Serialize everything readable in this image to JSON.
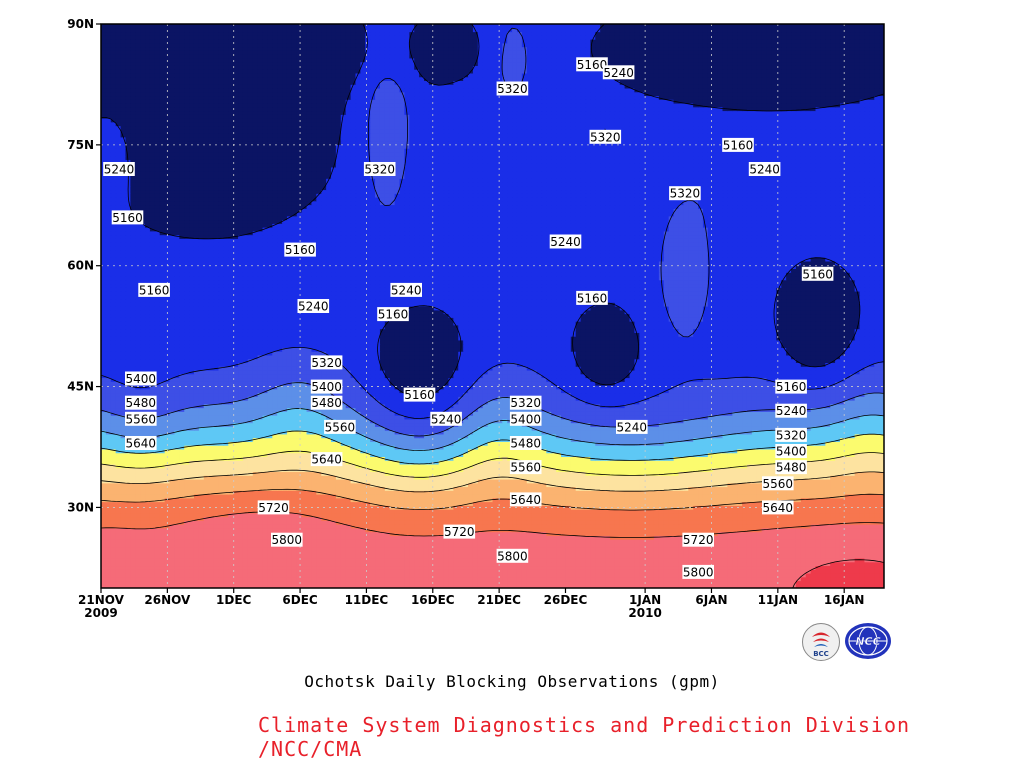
{
  "chart_data": {
    "type": "heatmap",
    "title": "Ochotsk Daily Blocking Observations (gpm)",
    "xlabel": "",
    "ylabel": "",
    "x_ticks": [
      "21NOV\n2009",
      "26NOV",
      "1DEC",
      "6DEC",
      "11DEC",
      "16DEC",
      "21DEC",
      "26DEC",
      "1JAN\n2010",
      "6JAN",
      "11JAN",
      "16JAN"
    ],
    "y_ticks": [
      "30N",
      "45N",
      "60N",
      "75N",
      "90N"
    ],
    "y_tick_values": [
      30,
      45,
      60,
      75,
      90
    ],
    "xlim_days": [
      0,
      59
    ],
    "ylim": [
      20,
      90
    ],
    "grid": true,
    "contour_levels": [
      5160,
      5240,
      5320,
      5400,
      5480,
      5560,
      5640,
      5720,
      5800,
      5880
    ],
    "level_colors": [
      "#0b1464",
      "#1a2ee8",
      "#3d4fe6",
      "#5c8fe8",
      "#5ec8f5",
      "#fbfb6e",
      "#fde3a0",
      "#fbb370",
      "#f7764f",
      "#f56b78",
      "#ee3a4b"
    ],
    "contour_labels": [
      {
        "v": "5240",
        "d": 0.1,
        "lat": 72
      },
      {
        "v": "5160",
        "d": 2,
        "lat": 66
      },
      {
        "v": "5160",
        "d": 4,
        "lat": 57
      },
      {
        "v": "5160",
        "d": 15,
        "lat": 62
      },
      {
        "v": "5240",
        "d": 16,
        "lat": 55
      },
      {
        "v": "5320",
        "d": 21,
        "lat": 72
      },
      {
        "v": "5240",
        "d": 23,
        "lat": 57
      },
      {
        "v": "5160",
        "d": 22,
        "lat": 54
      },
      {
        "v": "5160",
        "d": 24,
        "lat": 44
      },
      {
        "v": "5240",
        "d": 26,
        "lat": 41
      },
      {
        "v": "5320",
        "d": 31,
        "lat": 82
      },
      {
        "v": "5160",
        "d": 37,
        "lat": 85
      },
      {
        "v": "5240",
        "d": 39,
        "lat": 84
      },
      {
        "v": "5320",
        "d": 38,
        "lat": 76
      },
      {
        "v": "5240",
        "d": 35,
        "lat": 63
      },
      {
        "v": "5160",
        "d": 37,
        "lat": 56
      },
      {
        "v": "5320",
        "d": 44,
        "lat": 69
      },
      {
        "v": "5160",
        "d": 48,
        "lat": 75
      },
      {
        "v": "5240",
        "d": 50,
        "lat": 72
      },
      {
        "v": "5160",
        "d": 54,
        "lat": 59
      },
      {
        "v": "5240",
        "d": 40,
        "lat": 40
      },
      {
        "v": "5160",
        "d": 52,
        "lat": 45
      },
      {
        "v": "5240",
        "d": 52,
        "lat": 42
      },
      {
        "v": "5320",
        "d": 52,
        "lat": 39
      },
      {
        "v": "5400",
        "d": 52,
        "lat": 37
      },
      {
        "v": "5480",
        "d": 52,
        "lat": 35
      },
      {
        "v": "5560",
        "d": 51,
        "lat": 33
      },
      {
        "v": "5640",
        "d": 51,
        "lat": 30
      },
      {
        "v": "5720",
        "d": 45,
        "lat": 26
      },
      {
        "v": "5800",
        "d": 45,
        "lat": 22
      },
      {
        "v": "5400",
        "d": 3,
        "lat": 46
      },
      {
        "v": "5480",
        "d": 3,
        "lat": 43
      },
      {
        "v": "5560",
        "d": 3,
        "lat": 41
      },
      {
        "v": "5640",
        "d": 3,
        "lat": 38
      },
      {
        "v": "5320",
        "d": 17,
        "lat": 48
      },
      {
        "v": "5400",
        "d": 17,
        "lat": 45
      },
      {
        "v": "5480",
        "d": 17,
        "lat": 43
      },
      {
        "v": "5560",
        "d": 18,
        "lat": 40
      },
      {
        "v": "5640",
        "d": 17,
        "lat": 36
      },
      {
        "v": "5720",
        "d": 13,
        "lat": 30
      },
      {
        "v": "5800",
        "d": 14,
        "lat": 26
      },
      {
        "v": "5320",
        "d": 32,
        "lat": 43
      },
      {
        "v": "5400",
        "d": 32,
        "lat": 41
      },
      {
        "v": "5480",
        "d": 32,
        "lat": 38
      },
      {
        "v": "5560",
        "d": 32,
        "lat": 35
      },
      {
        "v": "5640",
        "d": 32,
        "lat": 31
      },
      {
        "v": "5720",
        "d": 27,
        "lat": 27
      },
      {
        "v": "5800",
        "d": 31,
        "lat": 24
      }
    ]
  },
  "footer": {
    "title": "Ochotsk Daily Blocking Observations (gpm)",
    "credit": "Climate System Diagnostics and Prediction Division /NCC/CMA"
  },
  "logos": {
    "bcc": {
      "icon": "bcc-logo-icon",
      "text": "BCC"
    },
    "ncc": {
      "icon": "ncc-logo-icon",
      "text": "NCC"
    }
  }
}
